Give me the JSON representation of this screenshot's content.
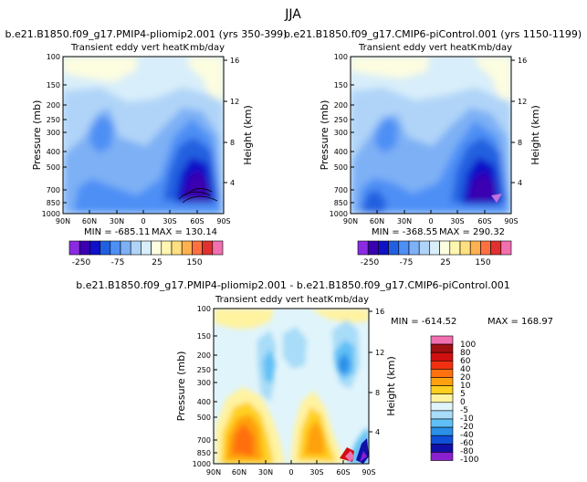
{
  "page_title": "JJA",
  "chart_data": [
    {
      "type": "heatmap",
      "title": "b.e21.B1850.f09_g17.PMIP4-pliomip2.001 (yrs 350-399)",
      "subtitle_left": "Transient eddy vert heatK",
      "subtitle_right": "mb/day",
      "ylabel": "Pressure (mb)",
      "y2label": "Height (km)",
      "y_ticks": [
        "100",
        "150",
        "200",
        "250",
        "300",
        "400",
        "500",
        "700",
        "850",
        "1000"
      ],
      "y_tick_values": [
        100,
        150,
        200,
        250,
        300,
        400,
        500,
        700,
        850,
        1000
      ],
      "y2_ticks": [
        "16",
        "12",
        "8",
        "4"
      ],
      "y2_tick_values": [
        16,
        12,
        8,
        4
      ],
      "x_ticks": [
        "90N",
        "60N",
        "30N",
        "0",
        "30S",
        "60S",
        "90S"
      ],
      "x_tick_values": [
        90,
        60,
        30,
        0,
        -30,
        -60,
        -90
      ],
      "xlim": [
        90,
        -90
      ],
      "ylim": [
        1000,
        100
      ],
      "y_scale": "log",
      "min_label": "MIN = -685.11",
      "max_label": "MAX = 130.14",
      "colorbar_labels": [
        "-250",
        "-75",
        "25",
        "150"
      ]
    },
    {
      "type": "heatmap",
      "title": "b.e21.B1850.f09_g17.CMIP6-piControl.001 (yrs 1150-1199)",
      "subtitle_left": "Transient eddy vert heatK",
      "subtitle_right": "mb/day",
      "ylabel": "Pressure (mb)",
      "y2label": "Height (km)",
      "y_ticks": [
        "100",
        "150",
        "200",
        "250",
        "300",
        "400",
        "500",
        "700",
        "850",
        "1000"
      ],
      "y_tick_values": [
        100,
        150,
        200,
        250,
        300,
        400,
        500,
        700,
        850,
        1000
      ],
      "y2_ticks": [
        "16",
        "12",
        "8",
        "4"
      ],
      "y2_tick_values": [
        16,
        12,
        8,
        4
      ],
      "x_ticks": [
        "90N",
        "60N",
        "30N",
        "0",
        "30S",
        "60S",
        "90S"
      ],
      "x_tick_values": [
        90,
        60,
        30,
        0,
        -30,
        -60,
        -90
      ],
      "xlim": [
        90,
        -90
      ],
      "ylim": [
        1000,
        100
      ],
      "y_scale": "log",
      "min_label": "MIN = -368.55",
      "max_label": "MAX = 290.32",
      "colorbar_labels": [
        "-250",
        "-75",
        "25",
        "150"
      ]
    },
    {
      "type": "heatmap",
      "title": "b.e21.B1850.f09_g17.PMIP4-pliomip2.001 - b.e21.B1850.f09_g17.CMIP6-piControl.001",
      "subtitle_left": "Transient eddy vert heatK",
      "subtitle_right": "mb/day",
      "ylabel": "Pressure (mb)",
      "y2label": "Height (km)",
      "y_ticks": [
        "100",
        "150",
        "200",
        "250",
        "300",
        "400",
        "500",
        "700",
        "850",
        "1000"
      ],
      "y_tick_values": [
        100,
        150,
        200,
        250,
        300,
        400,
        500,
        700,
        850,
        1000
      ],
      "y2_ticks": [
        "16",
        "12",
        "8",
        "4"
      ],
      "y2_tick_values": [
        16,
        12,
        8,
        4
      ],
      "x_ticks": [
        "90N",
        "60N",
        "30N",
        "0",
        "30S",
        "60S",
        "90S"
      ],
      "x_tick_values": [
        90,
        60,
        30,
        0,
        -30,
        -60,
        -90
      ],
      "xlim": [
        90,
        -90
      ],
      "ylim": [
        1000,
        100
      ],
      "y_scale": "log",
      "min_label": "MIN = -614.52",
      "max_label": "MAX = 168.97",
      "colorbar_labels": [
        "100",
        "80",
        "60",
        "40",
        "20",
        "10",
        "5",
        "0",
        "-5",
        "-10",
        "-20",
        "-40",
        "-60",
        "-80",
        "-100"
      ]
    }
  ],
  "colors": {
    "abs_palette": [
      "#8a2be2",
      "#3a00b0",
      "#1010c8",
      "#2060e0",
      "#4d8ff5",
      "#7db0f5",
      "#b0d4f8",
      "#d8eefa",
      "#fdfde0",
      "#fff6b0",
      "#ffe080",
      "#ffb050",
      "#ff7040",
      "#e03030",
      "#f070b0"
    ],
    "diff_palette": [
      "#f070b0",
      "#a01010",
      "#d01010",
      "#f03010",
      "#ff7010",
      "#ffa010",
      "#ffd020",
      "#fff3a0",
      "#e0f4fb",
      "#a8dcf8",
      "#60c0f5",
      "#2a90e8",
      "#1050d8",
      "#1010a8",
      "#8a20d0"
    ]
  }
}
